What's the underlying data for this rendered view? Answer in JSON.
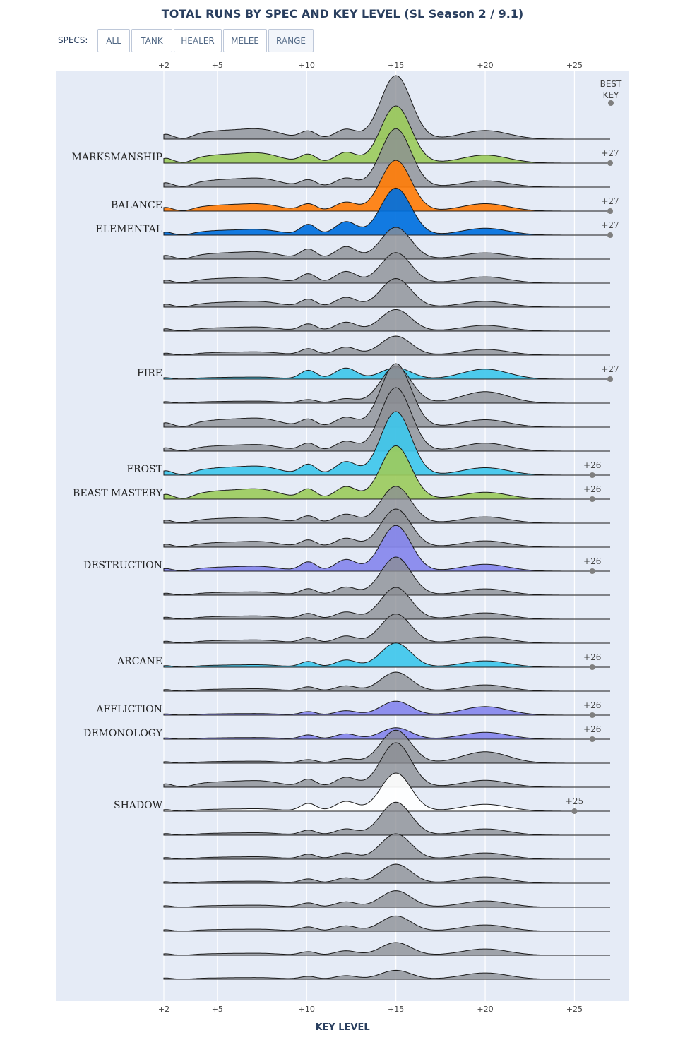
{
  "title": "TOTAL RUNS BY SPEC AND KEY LEVEL (SL Season 2 / 9.1)",
  "filters": {
    "label": "SPECS:",
    "buttons": [
      "ALL",
      "TANK",
      "HEALER",
      "MELEE",
      "RANGE"
    ],
    "active": "RANGE"
  },
  "best_key_header": [
    "BEST",
    "KEY"
  ],
  "colors": {
    "plot_bg": "#e5ebf6",
    "gray_fill": "#8a8d93",
    "hunter": "#9ccb5d",
    "druid": "#ff7d0a",
    "shaman": "#0070de",
    "mage": "#3fc7eb",
    "warlock": "#8787ed",
    "priest": "#ffffff"
  },
  "chart_data": {
    "type": "ridgeline",
    "xlabel": "KEY LEVEL",
    "x_ticks": [
      "+2",
      "+5",
      "+10",
      "+15",
      "+20",
      "+25"
    ],
    "x_tick_values": [
      2,
      5,
      10,
      15,
      20,
      25
    ],
    "xlim": [
      2,
      27
    ],
    "series": [
      {
        "name": "",
        "color": "gray",
        "peak": 1.0,
        "base": 0.25,
        "bump": 0.22,
        "tail": 0.3
      },
      {
        "name": "MARKSMANSHIP",
        "color": "hunter",
        "best": "+27",
        "best_value": 27,
        "peak": 0.9,
        "base": 0.25,
        "bump": 0.24,
        "tail": 0.28
      },
      {
        "name": "",
        "color": "gray",
        "peak": 0.92,
        "base": 0.22,
        "bump": 0.2,
        "tail": 0.22
      },
      {
        "name": "BALANCE",
        "color": "druid",
        "best": "+27",
        "best_value": 27,
        "peak": 0.8,
        "base": 0.18,
        "bump": 0.2,
        "tail": 0.26
      },
      {
        "name": "ELEMENTAL",
        "color": "shaman",
        "best": "+27",
        "best_value": 27,
        "peak": 0.74,
        "base": 0.14,
        "bump": 0.3,
        "tail": 0.24
      },
      {
        "name": "",
        "color": "gray",
        "peak": 0.5,
        "base": 0.18,
        "bump": 0.28,
        "tail": 0.22
      },
      {
        "name": "",
        "color": "gray",
        "peak": 0.48,
        "base": 0.14,
        "bump": 0.26,
        "tail": 0.22
      },
      {
        "name": "",
        "color": "gray",
        "peak": 0.45,
        "base": 0.14,
        "bump": 0.22,
        "tail": 0.2
      },
      {
        "name": "",
        "color": "gray",
        "peak": 0.34,
        "base": 0.1,
        "bump": 0.2,
        "tail": 0.2
      },
      {
        "name": "",
        "color": "gray",
        "peak": 0.3,
        "base": 0.08,
        "bump": 0.18,
        "tail": 0.2
      },
      {
        "name": "FIRE",
        "color": "mage",
        "best": "+27",
        "best_value": 27,
        "peak": 0.18,
        "base": 0.05,
        "bump": 0.25,
        "tail": 0.35
      },
      {
        "name": "",
        "color": "gray",
        "peak": 0.58,
        "base": 0.05,
        "bump": 0.1,
        "tail": 0.4
      },
      {
        "name": "",
        "color": "gray",
        "peak": 1.0,
        "base": 0.22,
        "bump": 0.22,
        "tail": 0.26
      },
      {
        "name": "",
        "color": "gray",
        "peak": 1.0,
        "base": 0.16,
        "bump": 0.22,
        "tail": 0.28
      },
      {
        "name": "FROST",
        "color": "mage",
        "best": "+26",
        "best_value": 26,
        "peak": 1.0,
        "base": 0.22,
        "bump": 0.3,
        "tail": 0.26
      },
      {
        "name": "BEAST MASTERY",
        "color": "hunter",
        "best": "+26",
        "best_value": 26,
        "peak": 0.84,
        "base": 0.25,
        "bump": 0.28,
        "tail": 0.24
      },
      {
        "name": "",
        "color": "gray",
        "peak": 0.58,
        "base": 0.14,
        "bump": 0.2,
        "tail": 0.22
      },
      {
        "name": "",
        "color": "gray",
        "peak": 0.6,
        "base": 0.14,
        "bump": 0.2,
        "tail": 0.22
      },
      {
        "name": "DESTRUCTION",
        "color": "warlock",
        "best": "+26",
        "best_value": 26,
        "peak": 0.72,
        "base": 0.12,
        "bump": 0.26,
        "tail": 0.24
      },
      {
        "name": "",
        "color": "gray",
        "peak": 0.6,
        "base": 0.08,
        "bump": 0.18,
        "tail": 0.22
      },
      {
        "name": "",
        "color": "gray",
        "peak": 0.5,
        "base": 0.08,
        "bump": 0.16,
        "tail": 0.22
      },
      {
        "name": "",
        "color": "gray",
        "peak": 0.46,
        "base": 0.08,
        "bump": 0.16,
        "tail": 0.22
      },
      {
        "name": "ARCANE",
        "color": "mage",
        "best": "+26",
        "best_value": 26,
        "peak": 0.38,
        "base": 0.06,
        "bump": 0.16,
        "tail": 0.22
      },
      {
        "name": "",
        "color": "gray",
        "peak": 0.3,
        "base": 0.06,
        "bump": 0.12,
        "tail": 0.22
      },
      {
        "name": "AFFLICTION",
        "color": "warlock",
        "best": "+26",
        "best_value": 26,
        "peak": 0.22,
        "base": 0.04,
        "bump": 0.1,
        "tail": 0.3
      },
      {
        "name": "DEMONOLOGY",
        "color": "warlock",
        "best": "+26",
        "best_value": 26,
        "peak": 0.18,
        "base": 0.04,
        "bump": 0.12,
        "tail": 0.24
      },
      {
        "name": "",
        "color": "gray",
        "peak": 0.52,
        "base": 0.05,
        "bump": 0.1,
        "tail": 0.4
      },
      {
        "name": "",
        "color": "gray",
        "peak": 0.7,
        "base": 0.16,
        "bump": 0.22,
        "tail": 0.24
      },
      {
        "name": "SHADOW",
        "color": "priest",
        "best": "+25",
        "best_value": 25,
        "peak": 0.6,
        "base": 0.06,
        "bump": 0.22,
        "tail": 0.24
      },
      {
        "name": "",
        "color": "gray",
        "peak": 0.52,
        "base": 0.06,
        "bump": 0.14,
        "tail": 0.22
      },
      {
        "name": "",
        "color": "gray",
        "peak": 0.4,
        "base": 0.06,
        "bump": 0.14,
        "tail": 0.22
      },
      {
        "name": "",
        "color": "gray",
        "peak": 0.3,
        "base": 0.05,
        "bump": 0.12,
        "tail": 0.22
      },
      {
        "name": "",
        "color": "gray",
        "peak": 0.26,
        "base": 0.05,
        "bump": 0.12,
        "tail": 0.22
      },
      {
        "name": "",
        "color": "gray",
        "peak": 0.24,
        "base": 0.05,
        "bump": 0.12,
        "tail": 0.22
      },
      {
        "name": "",
        "color": "gray",
        "peak": 0.2,
        "base": 0.05,
        "bump": 0.1,
        "tail": 0.22
      },
      {
        "name": "",
        "color": "gray",
        "peak": 0.14,
        "base": 0.04,
        "bump": 0.08,
        "tail": 0.22
      }
    ]
  }
}
